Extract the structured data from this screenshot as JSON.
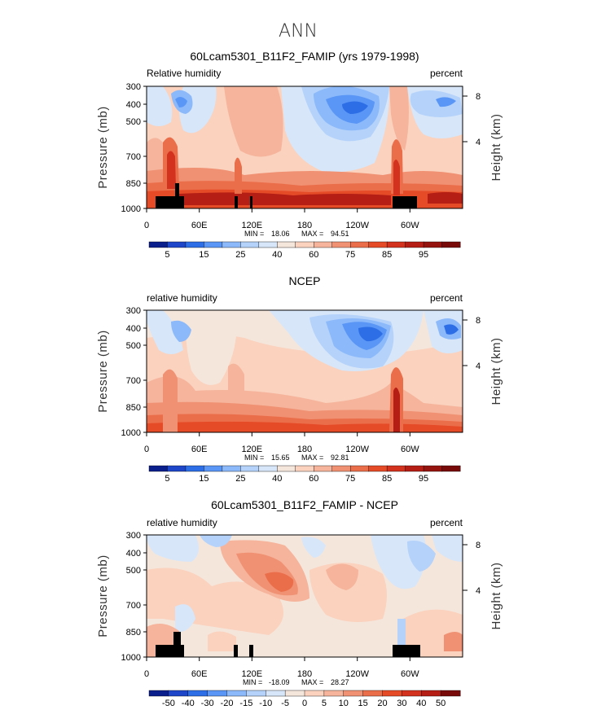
{
  "page_title": "ANN",
  "chart_data": [
    {
      "type": "heatmap",
      "title": "60Lcam5301_B11F2_FAMIP (yrs 1979-1998)",
      "left_label": "Relative humidity",
      "right_label": "percent",
      "ylabel": "Pressure (mb)",
      "y2label": "Height (km)",
      "y_ticks": [
        "300",
        "400",
        "500",
        "700",
        "850",
        "1000"
      ],
      "y2_ticks": [
        "8",
        "4"
      ],
      "x_ticks": [
        "0",
        "60E",
        "120E",
        "180",
        "120W",
        "60W"
      ],
      "min_label": "MIN =",
      "min_value": "18.06",
      "max_label": "MAX =",
      "max_value": "94.51",
      "colorbar_labels": [
        "5",
        "15",
        "25",
        "40",
        "60",
        "75",
        "85",
        "95"
      ],
      "colorbar_colors": [
        "#0a1e8c",
        "#1e46c8",
        "#2d6ee6",
        "#5a96f5",
        "#8cb9fa",
        "#b4d2fa",
        "#d7e6f8",
        "#f5e6dc",
        "#fad2be",
        "#f5b49b",
        "#f09173",
        "#eb6e4b",
        "#e64b28",
        "#d2321e",
        "#b41e14",
        "#961410",
        "#780a0a"
      ],
      "levels": [
        5,
        10,
        15,
        20,
        25,
        30,
        40,
        50,
        60,
        70,
        75,
        80,
        85,
        90,
        95
      ]
    },
    {
      "type": "heatmap",
      "title": "NCEP",
      "left_label": "relative humidity",
      "right_label": "percent",
      "ylabel": "Pressure (mb)",
      "y2label": "Height (km)",
      "y_ticks": [
        "300",
        "400",
        "500",
        "700",
        "850",
        "1000"
      ],
      "y2_ticks": [
        "8",
        "4"
      ],
      "x_ticks": [
        "0",
        "60E",
        "120E",
        "180",
        "120W",
        "60W"
      ],
      "min_label": "MIN =",
      "min_value": "15.65",
      "max_label": "MAX =",
      "max_value": "92.81",
      "colorbar_labels": [
        "5",
        "15",
        "25",
        "40",
        "60",
        "75",
        "85",
        "95"
      ],
      "colorbar_colors": [
        "#0a1e8c",
        "#1e46c8",
        "#2d6ee6",
        "#5a96f5",
        "#8cb9fa",
        "#b4d2fa",
        "#d7e6f8",
        "#f5e6dc",
        "#fad2be",
        "#f5b49b",
        "#f09173",
        "#eb6e4b",
        "#e64b28",
        "#d2321e",
        "#b41e14",
        "#961410",
        "#780a0a"
      ],
      "levels": [
        5,
        10,
        15,
        20,
        25,
        30,
        40,
        50,
        60,
        70,
        75,
        80,
        85,
        90,
        95
      ]
    },
    {
      "type": "heatmap",
      "title": "60Lcam5301_B11F2_FAMIP - NCEP",
      "left_label": "relative humidity",
      "right_label": "percent",
      "ylabel": "Pressure (mb)",
      "y2label": "Height (km)",
      "y_ticks": [
        "300",
        "400",
        "500",
        "700",
        "850",
        "1000"
      ],
      "y2_ticks": [
        "8",
        "4"
      ],
      "x_ticks": [
        "0",
        "60E",
        "120E",
        "180",
        "120W",
        "60W"
      ],
      "min_label": "MIN =",
      "min_value": "-18.09",
      "max_label": "MAX =",
      "max_value": "28.27",
      "colorbar_labels": [
        "-50",
        "-40",
        "-30",
        "-20",
        "-15",
        "-10",
        "-5",
        "0",
        "5",
        "10",
        "15",
        "20",
        "30",
        "40",
        "50"
      ],
      "colorbar_colors": [
        "#0a1e8c",
        "#1e46c8",
        "#2d6ee6",
        "#5a96f5",
        "#8cb9fa",
        "#b4d2fa",
        "#d7e6f8",
        "#f5e6dc",
        "#fad2be",
        "#f5b49b",
        "#f09173",
        "#eb6e4b",
        "#e64b28",
        "#d2321e",
        "#b41e14",
        "#780a0a"
      ],
      "levels": [
        -50,
        -40,
        -30,
        -20,
        -15,
        -10,
        -5,
        0,
        5,
        10,
        15,
        20,
        30,
        40,
        50
      ]
    }
  ]
}
